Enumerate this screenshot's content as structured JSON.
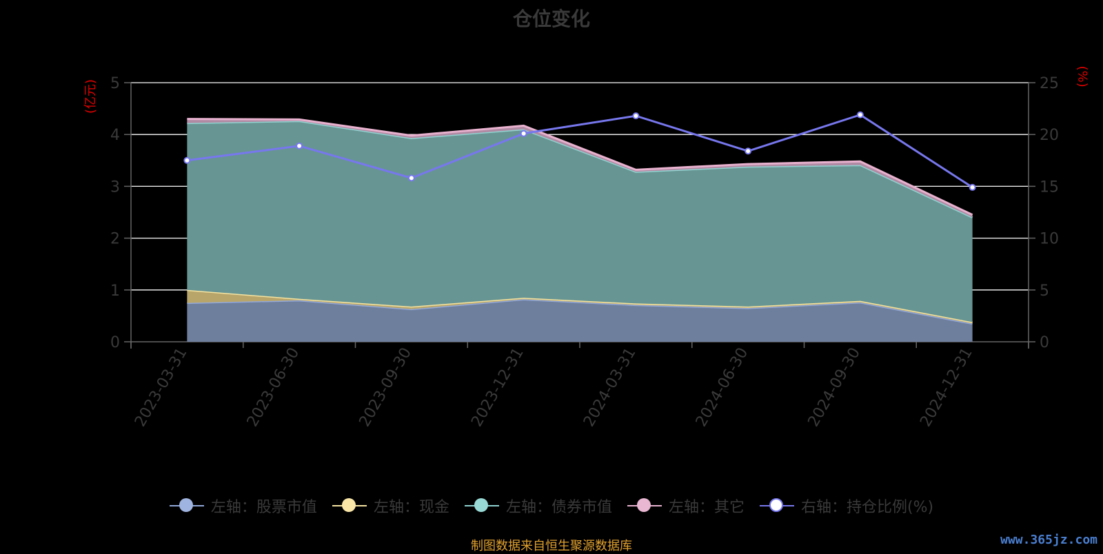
{
  "chart_data": {
    "type": "area",
    "title": "仓位变化",
    "categories": [
      "2023-03-31",
      "2023-06-30",
      "2023-09-30",
      "2023-12-31",
      "2024-03-31",
      "2024-06-30",
      "2024-09-30",
      "2024-12-31"
    ],
    "left_axis": {
      "label": "(亿元)",
      "min": 0,
      "max": 5,
      "ticks": [
        0,
        1,
        2,
        3,
        4,
        5
      ]
    },
    "right_axis": {
      "label": "(%)",
      "min": 0,
      "max": 25,
      "ticks": [
        0,
        5,
        10,
        15,
        20,
        25
      ]
    },
    "series": [
      {
        "name": "左轴：股票市值",
        "axis": "left",
        "type": "area",
        "color": "#91a7d8",
        "fill": "#6e7f9e",
        "values": [
          0.75,
          0.8,
          0.63,
          0.82,
          0.71,
          0.65,
          0.76,
          0.35
        ]
      },
      {
        "name": "左轴：现金",
        "axis": "left",
        "type": "area",
        "color": "#f5e3a0",
        "fill": "#b8a56a",
        "values": [
          0.25,
          0.03,
          0.05,
          0.03,
          0.03,
          0.03,
          0.03,
          0.03
        ]
      },
      {
        "name": "左轴：债券市值",
        "axis": "left",
        "type": "area",
        "color": "#8fd3d0",
        "fill": "#679593",
        "values": [
          3.22,
          3.43,
          3.25,
          3.25,
          2.54,
          2.7,
          2.62,
          2.02
        ]
      },
      {
        "name": "左轴：其它",
        "axis": "left",
        "type": "area",
        "color": "#e9b2cf",
        "fill": "#b08aa3",
        "values": [
          0.08,
          0.03,
          0.05,
          0.07,
          0.04,
          0.05,
          0.07,
          0.05
        ]
      },
      {
        "name": "右轴：持仓比例(%)",
        "axis": "right",
        "type": "line",
        "color": "#7777ee",
        "values": [
          17.5,
          18.9,
          15.8,
          20.1,
          21.8,
          18.4,
          21.9,
          14.9
        ]
      }
    ],
    "grid": true,
    "legend_position": "bottom"
  },
  "footer": {
    "source": "制图数据来自恒生聚源数据库",
    "watermark": "www.365jz.com"
  }
}
